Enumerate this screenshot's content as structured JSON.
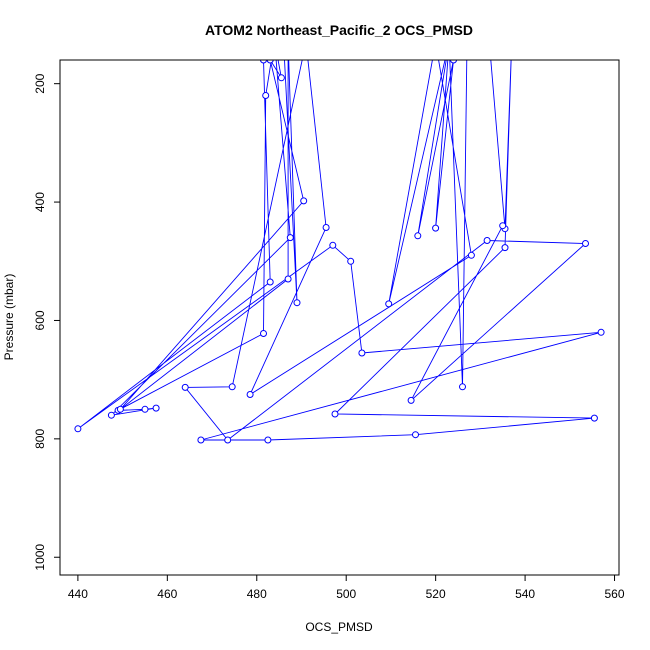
{
  "chart_data": {
    "type": "line",
    "title": "ATOM2 Northeast_Pacific_2 OCS_PMSD",
    "xlabel": "OCS_PMSD",
    "ylabel": "Pressure (mbar)",
    "xlim": [
      436,
      561
    ],
    "ylim": [
      1030,
      160
    ],
    "y_reversed": true,
    "x_ticks": [
      440,
      460,
      480,
      500,
      520,
      540,
      560
    ],
    "y_ticks": [
      200,
      400,
      600,
      800,
      1000
    ],
    "grid": false,
    "legend": "none",
    "line_color": "#0000ff",
    "marker": "open-circle",
    "series": [
      {
        "points": [
          [
            484,
            125
          ],
          [
            482,
            220
          ],
          [
            481.5,
            622
          ],
          [
            449,
            752
          ],
          [
            455,
            750
          ],
          [
            457.5,
            748
          ],
          [
            447.5,
            760
          ],
          [
            487.5,
            460
          ],
          [
            484,
            130
          ],
          [
            485.5,
            190
          ],
          [
            483,
            160
          ],
          [
            490.5,
            398
          ],
          [
            449.5,
            750
          ],
          [
            487,
            530
          ],
          [
            487,
            130
          ],
          [
            489,
            570
          ],
          [
            486,
            130
          ],
          [
            481.5,
            160
          ],
          [
            483,
            535
          ],
          [
            440,
            783
          ],
          [
            497,
            473
          ],
          [
            501,
            500
          ],
          [
            503.5,
            655
          ],
          [
            557,
            620
          ],
          [
            467.5,
            802
          ],
          [
            482.5,
            802
          ],
          [
            515.5,
            793
          ],
          [
            555.5,
            765
          ],
          [
            497.5,
            758
          ],
          [
            535.5,
            477
          ],
          [
            537,
            130
          ],
          [
            535.5,
            445
          ],
          [
            532,
            130
          ],
          [
            527,
            130
          ],
          [
            526,
            712
          ],
          [
            523,
            130
          ],
          [
            520,
            444
          ],
          [
            524,
            160
          ],
          [
            516,
            457
          ],
          [
            523,
            130
          ],
          [
            509.5,
            572
          ],
          [
            520,
            130
          ],
          [
            528,
            490
          ],
          [
            478.5,
            725
          ],
          [
            495.5,
            443
          ],
          [
            491,
            130
          ],
          [
            474.5,
            712
          ],
          [
            464,
            713
          ],
          [
            473.5,
            802
          ],
          [
            531.5,
            465
          ],
          [
            553.5,
            470
          ],
          [
            514.5,
            735
          ],
          [
            535,
            440
          ]
        ]
      }
    ]
  }
}
